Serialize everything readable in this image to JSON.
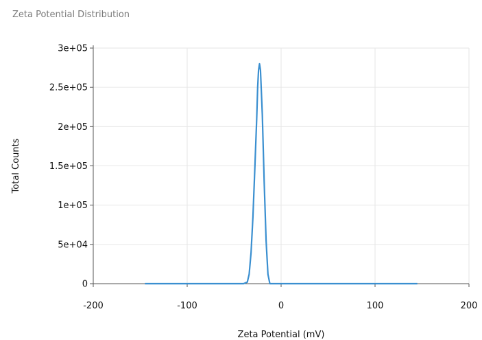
{
  "chart_data": {
    "type": "line",
    "title": "Zeta Potential Distribution",
    "xlabel": "Zeta Potential (mV)",
    "ylabel": "Total Counts",
    "xlim": [
      -200,
      200
    ],
    "ylim": [
      0,
      300000
    ],
    "xticks": [
      -200,
      -100,
      0,
      100,
      200
    ],
    "xtick_labels": [
      "-200",
      "-100",
      "0",
      "100",
      "200"
    ],
    "yticks": [
      0,
      50000,
      100000,
      150000,
      200000,
      250000,
      300000
    ],
    "ytick_labels": [
      "0",
      "5e+04",
      "1e+05",
      "1.5e+05",
      "2e+05",
      "2.5e+05",
      "3e+05"
    ],
    "grid": true,
    "series_color": "#3a8fd0",
    "x": [
      -145,
      -40,
      -36,
      -34,
      -32,
      -30,
      -28,
      -26,
      -25,
      -24,
      -23,
      -22,
      -20,
      -18,
      -16,
      -14,
      -12,
      145
    ],
    "y": [
      0,
      0,
      2000,
      12000,
      40000,
      85000,
      145000,
      210000,
      250000,
      272000,
      280000,
      272000,
      215000,
      130000,
      55000,
      12000,
      0,
      0
    ]
  }
}
